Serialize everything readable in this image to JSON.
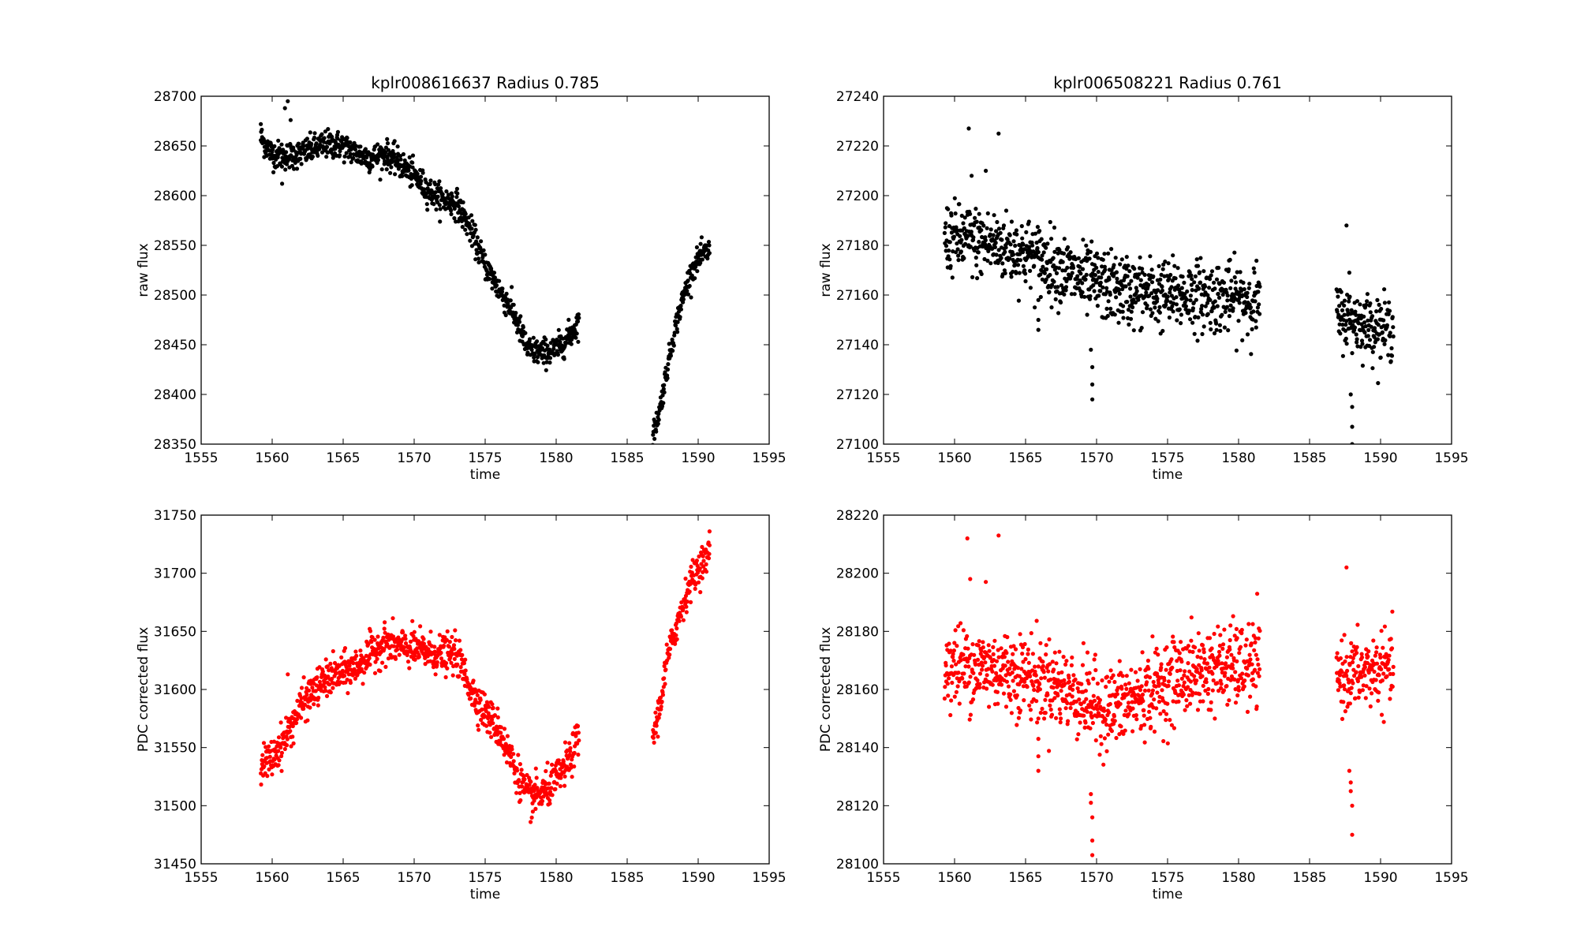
{
  "chart_data": [
    {
      "type": "scatter",
      "title": "kplr008616637  Radius 0.785",
      "xlabel": "time",
      "ylabel": "raw flux",
      "xlim": [
        1555,
        1595
      ],
      "ylim": [
        28350,
        28700
      ],
      "xticks": [
        "1555",
        "1560",
        "1565",
        "1570",
        "1575",
        "1580",
        "1585",
        "1590",
        "1595"
      ],
      "yticks": [
        "28350",
        "28400",
        "28450",
        "28500",
        "28550",
        "28600",
        "28650",
        "28700"
      ],
      "color": "#000000",
      "segments": [
        {
          "t": [
            1559.2,
            1560,
            1561,
            1562,
            1563,
            1564,
            1565,
            1566,
            1567,
            1568,
            1569,
            1570,
            1571,
            1572,
            1573,
            1574,
            1575,
            1576,
            1577,
            1578,
            1579,
            1580,
            1581,
            1581.6
          ],
          "f": [
            28658,
            28642,
            28640,
            28642,
            28648,
            28652,
            28650,
            28642,
            28638,
            28642,
            28632,
            28620,
            28605,
            28596,
            28592,
            28565,
            28530,
            28505,
            28482,
            28445,
            28442,
            28445,
            28460,
            28474
          ],
          "noise": 7
        },
        {
          "t": [
            1586.8,
            1587.3,
            1587.8,
            1588.3,
            1588.8,
            1589.3,
            1589.8,
            1590.3,
            1590.8
          ],
          "f": [
            28358,
            28385,
            28425,
            28462,
            28490,
            28515,
            28532,
            28540,
            28545
          ],
          "noise": 6
        }
      ],
      "outliers": [
        {
          "x": 1561.1,
          "y": 28695
        },
        {
          "x": 1560.9,
          "y": 28688
        },
        {
          "x": 1561.3,
          "y": 28676
        },
        {
          "x": 1560.7,
          "y": 28612
        },
        {
          "x": 1559.2,
          "y": 28672
        }
      ],
      "n_points": 1100
    },
    {
      "type": "scatter",
      "title": "kplr006508221  Radius 0.761",
      "xlabel": "time",
      "ylabel": "raw flux",
      "xlim": [
        1555,
        1595
      ],
      "ylim": [
        27100,
        27240
      ],
      "xticks": [
        "1555",
        "1560",
        "1565",
        "1570",
        "1575",
        "1580",
        "1585",
        "1590",
        "1595"
      ],
      "yticks": [
        "27100",
        "27120",
        "27140",
        "27160",
        "27180",
        "27200",
        "27220",
        "27240"
      ],
      "color": "#000000",
      "segments": [
        {
          "t": [
            1559.3,
            1561,
            1563,
            1565,
            1567,
            1569,
            1571,
            1573,
            1575,
            1577,
            1579,
            1581.5
          ],
          "f": [
            27183,
            27182,
            27180,
            27177,
            27172,
            27166,
            27163,
            27161,
            27160,
            27160,
            27159,
            27158
          ],
          "noise": 7
        },
        {
          "t": [
            1586.9,
            1588,
            1589,
            1590.9
          ],
          "f": [
            27152,
            27150,
            27148,
            27146
          ],
          "noise": 6
        }
      ],
      "outliers": [
        {
          "x": 1561,
          "y": 27227
        },
        {
          "x": 1563.1,
          "y": 27225
        },
        {
          "x": 1562.2,
          "y": 27210
        },
        {
          "x": 1561.2,
          "y": 27208
        },
        {
          "x": 1565.9,
          "y": 27158
        },
        {
          "x": 1565.9,
          "y": 27150
        },
        {
          "x": 1565.9,
          "y": 27146
        },
        {
          "x": 1569.6,
          "y": 27138
        },
        {
          "x": 1569.7,
          "y": 27131
        },
        {
          "x": 1569.7,
          "y": 27124
        },
        {
          "x": 1569.7,
          "y": 27118
        },
        {
          "x": 1587.6,
          "y": 27188
        },
        {
          "x": 1587.8,
          "y": 27169
        },
        {
          "x": 1587.9,
          "y": 27120
        },
        {
          "x": 1588,
          "y": 27115
        },
        {
          "x": 1588,
          "y": 27107
        },
        {
          "x": 1588,
          "y": 27100
        }
      ],
      "n_points": 1100
    },
    {
      "type": "scatter",
      "title": "",
      "xlabel": "time",
      "ylabel": "PDC corrected flux",
      "xlim": [
        1555,
        1595
      ],
      "ylim": [
        31450,
        31750
      ],
      "xticks": [
        "1555",
        "1560",
        "1565",
        "1570",
        "1575",
        "1580",
        "1585",
        "1590",
        "1595"
      ],
      "yticks": [
        "31450",
        "31500",
        "31550",
        "31600",
        "31650",
        "31700",
        "31750"
      ],
      "color": "#ff0000",
      "segments": [
        {
          "t": [
            1559.2,
            1560,
            1561,
            1562,
            1563,
            1564,
            1565,
            1566,
            1567,
            1568,
            1569,
            1570,
            1571,
            1572,
            1573,
            1574,
            1575,
            1576,
            1577,
            1578,
            1579,
            1580,
            1581,
            1581.6
          ],
          "f": [
            31535,
            31540,
            31560,
            31585,
            31600,
            31610,
            31614,
            31620,
            31632,
            31640,
            31636,
            31635,
            31632,
            31630,
            31630,
            31600,
            31580,
            31565,
            31535,
            31508,
            31510,
            31522,
            31540,
            31560
          ],
          "noise": 8
        },
        {
          "t": [
            1586.8,
            1587.3,
            1587.8,
            1588.3,
            1588.8,
            1589.3,
            1589.8,
            1590.3,
            1590.8
          ],
          "f": [
            31558,
            31585,
            31625,
            31648,
            31668,
            31688,
            31700,
            31710,
            31715
          ],
          "noise": 7
        }
      ],
      "outliers": [
        {
          "x": 1561.1,
          "y": 31613
        },
        {
          "x": 1578.2,
          "y": 31486
        },
        {
          "x": 1590.8,
          "y": 31736
        }
      ],
      "n_points": 1100
    },
    {
      "type": "scatter",
      "title": "",
      "xlabel": "time",
      "ylabel": "PDC corrected flux",
      "xlim": [
        1555,
        1595
      ],
      "ylim": [
        28100,
        28220
      ],
      "xticks": [
        "1555",
        "1560",
        "1565",
        "1570",
        "1575",
        "1580",
        "1585",
        "1590",
        "1595"
      ],
      "yticks": [
        "28100",
        "28120",
        "28140",
        "28160",
        "28180",
        "28200",
        "28220"
      ],
      "color": "#ff0000",
      "segments": [
        {
          "t": [
            1559.3,
            1561,
            1563,
            1565,
            1567,
            1569,
            1570.5,
            1572,
            1574,
            1576,
            1578,
            1580,
            1581.5
          ],
          "f": [
            28168,
            28168,
            28167,
            28165,
            28162,
            28157,
            28153,
            28155,
            28160,
            28165,
            28167,
            28168,
            28168
          ],
          "noise": 7
        },
        {
          "t": [
            1586.9,
            1588,
            1589,
            1590.9
          ],
          "f": [
            28165,
            28165,
            28166,
            28167
          ],
          "noise": 6
        }
      ],
      "outliers": [
        {
          "x": 1560.9,
          "y": 28212
        },
        {
          "x": 1563.1,
          "y": 28213
        },
        {
          "x": 1561.1,
          "y": 28198
        },
        {
          "x": 1562.2,
          "y": 28197
        },
        {
          "x": 1565.9,
          "y": 28150
        },
        {
          "x": 1565.9,
          "y": 28143
        },
        {
          "x": 1565.9,
          "y": 28137
        },
        {
          "x": 1565.9,
          "y": 28132
        },
        {
          "x": 1569.6,
          "y": 28124
        },
        {
          "x": 1569.6,
          "y": 28121
        },
        {
          "x": 1569.7,
          "y": 28116
        },
        {
          "x": 1569.7,
          "y": 28108
        },
        {
          "x": 1569.7,
          "y": 28103
        },
        {
          "x": 1587.6,
          "y": 28202
        },
        {
          "x": 1587.8,
          "y": 28132
        },
        {
          "x": 1587.9,
          "y": 28128
        },
        {
          "x": 1587.9,
          "y": 28125
        },
        {
          "x": 1588,
          "y": 28120
        },
        {
          "x": 1588,
          "y": 28110
        }
      ],
      "n_points": 1100
    }
  ]
}
